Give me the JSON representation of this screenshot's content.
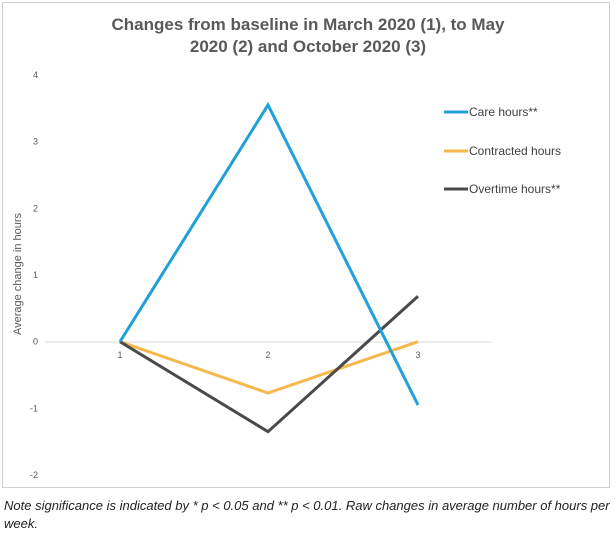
{
  "chart_data": {
    "type": "line",
    "title_line1": "Changes from baseline in March 2020 (1), to May",
    "title_line2": "2020 (2) and October 2020 (3)",
    "xlabel": "",
    "ylabel": "Average change in hours",
    "categories": [
      "1",
      "2",
      "3"
    ],
    "yticks": [
      "-2",
      "-1",
      "0",
      "1",
      "2",
      "3",
      "4"
    ],
    "ylim": [
      -2,
      4
    ],
    "grid": false,
    "legend_position": "right",
    "series": [
      {
        "name": "Care hours**",
        "color": "#1fa1d8",
        "values": [
          0,
          3.55,
          -0.95
        ]
      },
      {
        "name": "Contracted hours",
        "color": "#f5b94e",
        "values": [
          0,
          -0.77,
          0
        ]
      },
      {
        "name": "Overtime hours**",
        "color": "#4a4a4a",
        "values": [
          0,
          -1.35,
          0.68
        ]
      }
    ]
  },
  "note": "Note significance is indicated by * p < 0.05 and ** p < 0.01. Raw changes in average number of hours per week."
}
